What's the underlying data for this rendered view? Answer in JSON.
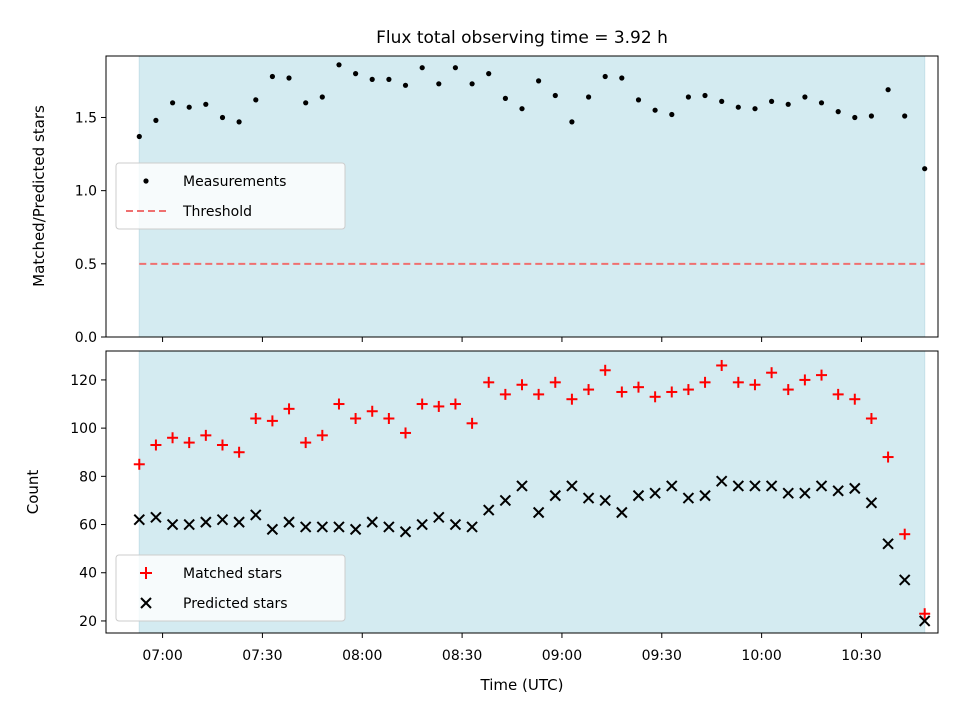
{
  "chart_data": [
    {
      "type": "scatter",
      "title": "Flux total observing time = 3.92 h",
      "xlabel": "",
      "ylabel": "Matched/Predicted stars",
      "xlim": [
        "06:43",
        "10:53"
      ],
      "ylim": [
        0,
        1.92
      ],
      "yticks": [
        0.0,
        0.5,
        1.0,
        1.5
      ],
      "ytick_labels": [
        "0.0",
        "0.5",
        "1.0",
        "1.5"
      ],
      "observing_window": [
        "06:53",
        "10:49"
      ],
      "grid": false,
      "legend_position": "center-left",
      "series": [
        {
          "name": "Measurements",
          "kind": "scatter",
          "marker": "dot",
          "color": "#000000",
          "x": [
            "06:53",
            "06:58",
            "07:03",
            "07:08",
            "07:13",
            "07:18",
            "07:23",
            "07:28",
            "07:33",
            "07:38",
            "07:43",
            "07:48",
            "07:53",
            "07:58",
            "08:03",
            "08:08",
            "08:13",
            "08:18",
            "08:23",
            "08:28",
            "08:33",
            "08:38",
            "08:43",
            "08:48",
            "08:53",
            "08:58",
            "09:03",
            "09:08",
            "09:13",
            "09:18",
            "09:23",
            "09:28",
            "09:33",
            "09:38",
            "09:43",
            "09:48",
            "09:53",
            "09:58",
            "10:03",
            "10:08",
            "10:13",
            "10:18",
            "10:23",
            "10:28",
            "10:33",
            "10:38",
            "10:43",
            "10:49"
          ],
          "y": [
            1.37,
            1.48,
            1.6,
            1.57,
            1.59,
            1.5,
            1.47,
            1.62,
            1.78,
            1.77,
            1.6,
            1.64,
            1.86,
            1.8,
            1.76,
            1.76,
            1.72,
            1.84,
            1.73,
            1.84,
            1.73,
            1.8,
            1.63,
            1.56,
            1.75,
            1.65,
            1.47,
            1.64,
            1.78,
            1.77,
            1.62,
            1.55,
            1.52,
            1.64,
            1.65,
            1.61,
            1.57,
            1.56,
            1.61,
            1.59,
            1.64,
            1.6,
            1.54,
            1.5,
            1.51,
            1.69,
            1.51,
            1.15
          ]
        },
        {
          "name": "Threshold",
          "kind": "hline",
          "style": "dashed",
          "color": "#ef7070",
          "y": 0.5
        }
      ]
    },
    {
      "type": "scatter",
      "title": "",
      "xlabel": "Time (UTC)",
      "ylabel": "Count",
      "xlim": [
        "06:43",
        "10:53"
      ],
      "ylim": [
        15,
        132
      ],
      "yticks": [
        20,
        40,
        60,
        80,
        100,
        120
      ],
      "ytick_labels": [
        "20",
        "40",
        "60",
        "80",
        "100",
        "120"
      ],
      "xticks": [
        "07:00",
        "07:30",
        "08:00",
        "08:30",
        "09:00",
        "09:30",
        "10:00",
        "10:30"
      ],
      "xtick_labels": [
        "07:00",
        "07:30",
        "08:00",
        "08:30",
        "09:00",
        "09:30",
        "10:00",
        "10:30"
      ],
      "observing_window": [
        "06:53",
        "10:49"
      ],
      "grid": false,
      "legend_position": "lower-left",
      "series": [
        {
          "name": "Matched stars",
          "kind": "scatter",
          "marker": "plus",
          "color": "#ff0000",
          "x": [
            "06:53",
            "06:58",
            "07:03",
            "07:08",
            "07:13",
            "07:18",
            "07:23",
            "07:28",
            "07:33",
            "07:38",
            "07:43",
            "07:48",
            "07:53",
            "07:58",
            "08:03",
            "08:08",
            "08:13",
            "08:18",
            "08:23",
            "08:28",
            "08:33",
            "08:38",
            "08:43",
            "08:48",
            "08:53",
            "08:58",
            "09:03",
            "09:08",
            "09:13",
            "09:18",
            "09:23",
            "09:28",
            "09:33",
            "09:38",
            "09:43",
            "09:48",
            "09:53",
            "09:58",
            "10:03",
            "10:08",
            "10:13",
            "10:18",
            "10:23",
            "10:28",
            "10:33",
            "10:38",
            "10:43",
            "10:49"
          ],
          "y": [
            85,
            93,
            96,
            94,
            97,
            93,
            90,
            104,
            103,
            108,
            94,
            97,
            110,
            104,
            107,
            104,
            98,
            110,
            109,
            110,
            102,
            119,
            114,
            118,
            114,
            119,
            112,
            116,
            124,
            115,
            117,
            113,
            115,
            116,
            119,
            126,
            119,
            118,
            123,
            116,
            120,
            122,
            114,
            112,
            104,
            88,
            56,
            23
          ]
        },
        {
          "name": "Predicted stars",
          "kind": "scatter",
          "marker": "x",
          "color": "#000000",
          "x": [
            "06:53",
            "06:58",
            "07:03",
            "07:08",
            "07:13",
            "07:18",
            "07:23",
            "07:28",
            "07:33",
            "07:38",
            "07:43",
            "07:48",
            "07:53",
            "07:58",
            "08:03",
            "08:08",
            "08:13",
            "08:18",
            "08:23",
            "08:28",
            "08:33",
            "08:38",
            "08:43",
            "08:48",
            "08:53",
            "08:58",
            "09:03",
            "09:08",
            "09:13",
            "09:18",
            "09:23",
            "09:28",
            "09:33",
            "09:38",
            "09:43",
            "09:48",
            "09:53",
            "09:58",
            "10:03",
            "10:08",
            "10:13",
            "10:18",
            "10:23",
            "10:28",
            "10:33",
            "10:38",
            "10:43",
            "10:49"
          ],
          "y": [
            62,
            63,
            60,
            60,
            61,
            62,
            61,
            64,
            58,
            61,
            59,
            59,
            59,
            58,
            61,
            59,
            57,
            60,
            63,
            60,
            59,
            66,
            70,
            76,
            65,
            72,
            76,
            71,
            70,
            65,
            72,
            73,
            76,
            71,
            72,
            78,
            76,
            76,
            76,
            73,
            73,
            76,
            74,
            75,
            69,
            52,
            37,
            20
          ]
        }
      ]
    }
  ],
  "colors": {
    "observing_window_fill": "#d4ebf1",
    "matched": "#ff0000",
    "predicted": "#000000",
    "threshold": "#ef7070"
  }
}
